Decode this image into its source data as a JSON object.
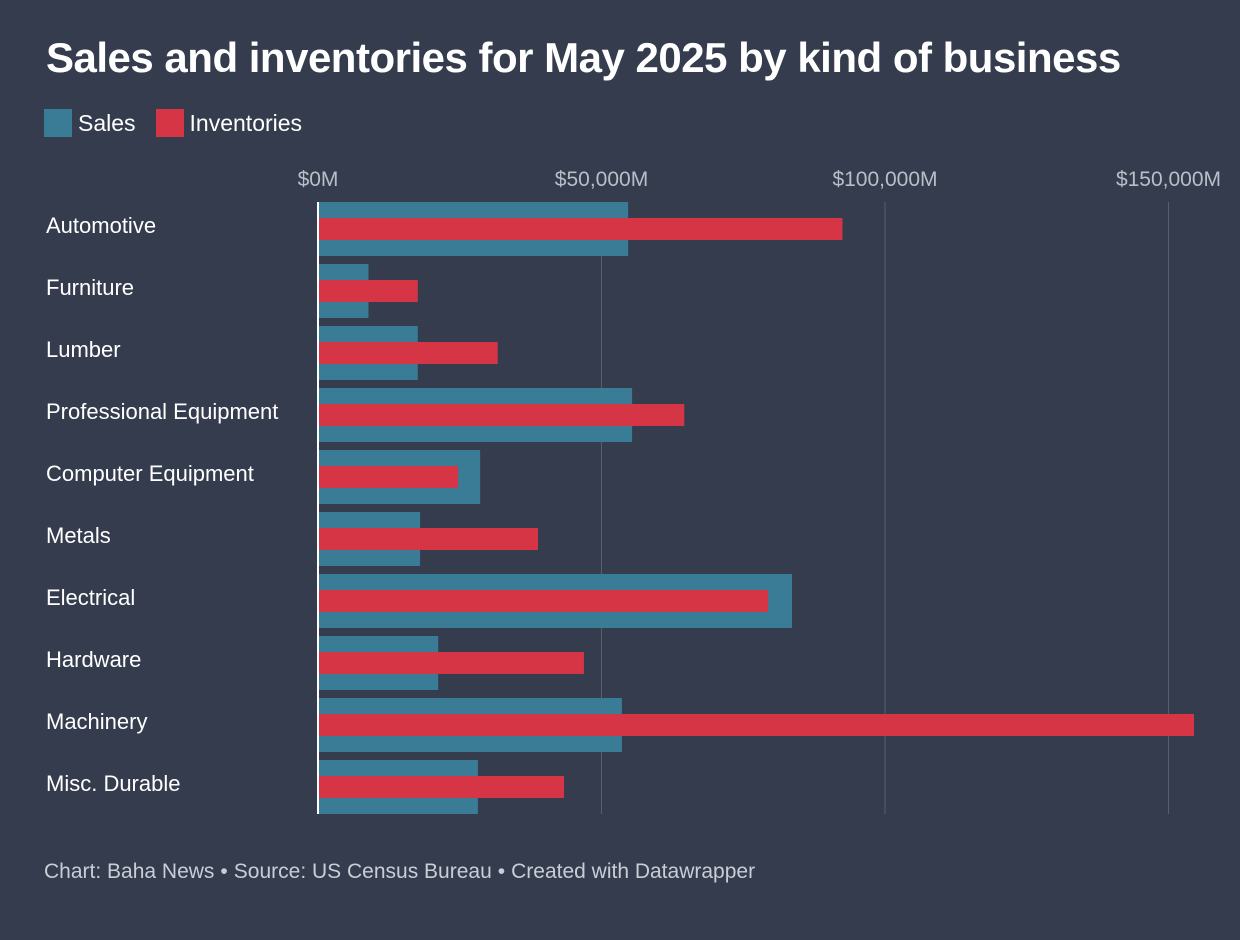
{
  "title": "Sales and inventories for May 2025 by kind of business",
  "legend": [
    {
      "label": "Sales",
      "color": "#3a7c96"
    },
    {
      "label": "Inventories",
      "color": "#d63546"
    }
  ],
  "footer": {
    "chart_by": "Chart: Baha News",
    "source": "Source: US Census Bureau",
    "created": "Created with Datawrapper",
    "separator": "•"
  },
  "chart_data": {
    "type": "bar",
    "orientation": "horizontal",
    "categories": [
      "Automotive",
      "Furniture",
      "Lumber",
      "Professional Equipment",
      "Computer Equipment",
      "Metals",
      "Electrical",
      "Hardware",
      "Machinery",
      "Misc. Durable"
    ],
    "series": [
      {
        "name": "Sales",
        "color": "#3a7c96",
        "values": [
          54700,
          8900,
          17600,
          55400,
          28600,
          18000,
          83600,
          21200,
          53600,
          28200
        ]
      },
      {
        "name": "Inventories",
        "color": "#d63546",
        "values": [
          92500,
          17600,
          31700,
          64600,
          24700,
          38800,
          79400,
          46900,
          154500,
          43400
        ]
      }
    ],
    "xticks": [
      {
        "value": 0,
        "label": "$0M"
      },
      {
        "value": 50000,
        "label": "$50,000M"
      },
      {
        "value": 100000,
        "label": "$100,000M"
      },
      {
        "value": 150000,
        "label": "$150,000M"
      }
    ],
    "xlim": [
      0,
      154500
    ],
    "grid": true,
    "legend_position": "top-left"
  }
}
